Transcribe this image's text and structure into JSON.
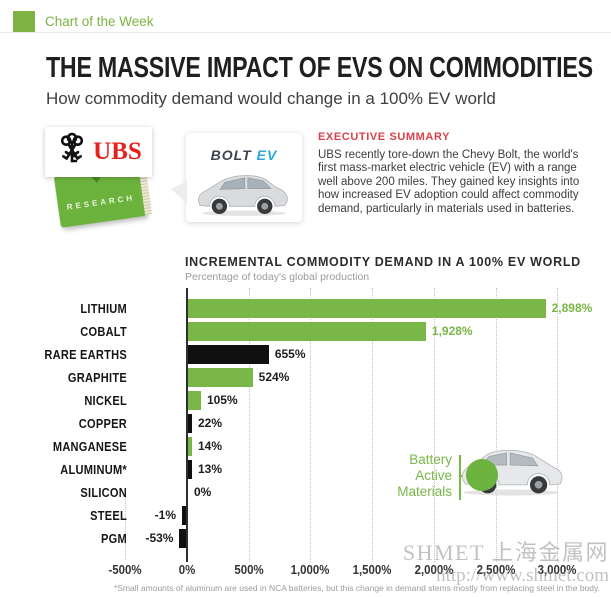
{
  "header": {
    "tag_label": "Chart of the Week"
  },
  "title": "THE MASSIVE IMPACT OF EVS ON COMMODITIES",
  "subtitle": "How commodity demand would change in a 100% EV world",
  "ubs": {
    "logo_text": "UBS",
    "book_label": "RESEARCH"
  },
  "bolt": {
    "logo_bolt": "BOLT",
    "logo_ev": "EV"
  },
  "executive_summary": {
    "heading": "EXECUTIVE SUMMARY",
    "body": "UBS recently tore-down the Chevy Bolt, the world's first mass-market electric vehicle (EV) with a range well above 200 miles. They gained key insights into how increased EV adoption could affect commodity demand, particularly in materials used in batteries."
  },
  "chart_data": {
    "type": "bar",
    "orientation": "horizontal",
    "title": "INCREMENTAL COMMODITY DEMAND IN A 100% EV WORLD",
    "subtitle": "Percentage of today's global production",
    "categories": [
      "LITHIUM",
      "COBALT",
      "RARE EARTHS",
      "GRAPHITE",
      "NICKEL",
      "COPPER",
      "MANGANESE",
      "ALUMINUM*",
      "SILICON",
      "STEEL",
      "PGM"
    ],
    "values": [
      2898,
      1928,
      655,
      524,
      105,
      22,
      14,
      13,
      0,
      -1,
      -53
    ],
    "labels": [
      "2,898%",
      "1,928%",
      "655%",
      "524%",
      "105%",
      "22%",
      "14%",
      "13%",
      "0%",
      "-1%",
      "-53%"
    ],
    "bar_colors": [
      "green",
      "green",
      "black",
      "green",
      "green",
      "black",
      "green",
      "black",
      "none",
      "black",
      "black"
    ],
    "label_colors": [
      "green",
      "green",
      "black",
      "black",
      "black",
      "black",
      "black",
      "black",
      "black",
      "black",
      "black"
    ],
    "xlim": [
      -500,
      3000
    ],
    "x_tick_values": [
      -500,
      0,
      500,
      1000,
      1500,
      2000,
      2500,
      3000
    ],
    "x_ticks": [
      "-500%",
      "0%",
      "500%",
      "1,000%",
      "1,500%",
      "2,000%",
      "2,500%",
      "3,000%"
    ],
    "grid": "dotted-vertical",
    "annotation_lines": [
      "Battery",
      "Active",
      "Materials"
    ]
  },
  "footnote": "*Small amounts of aluminum are used in NCA batteries, but this change in demand stems mostly from replacing steel in the body.",
  "watermark": {
    "line1": "SHMET 上海金属网",
    "line2": "http://www.shmet.com"
  },
  "colors": {
    "green": "#7ab648",
    "black_bar": "#101010",
    "red": "#dd4048",
    "ev_blue": "#2aa7e0",
    "ubs_red": "#e4231f"
  }
}
